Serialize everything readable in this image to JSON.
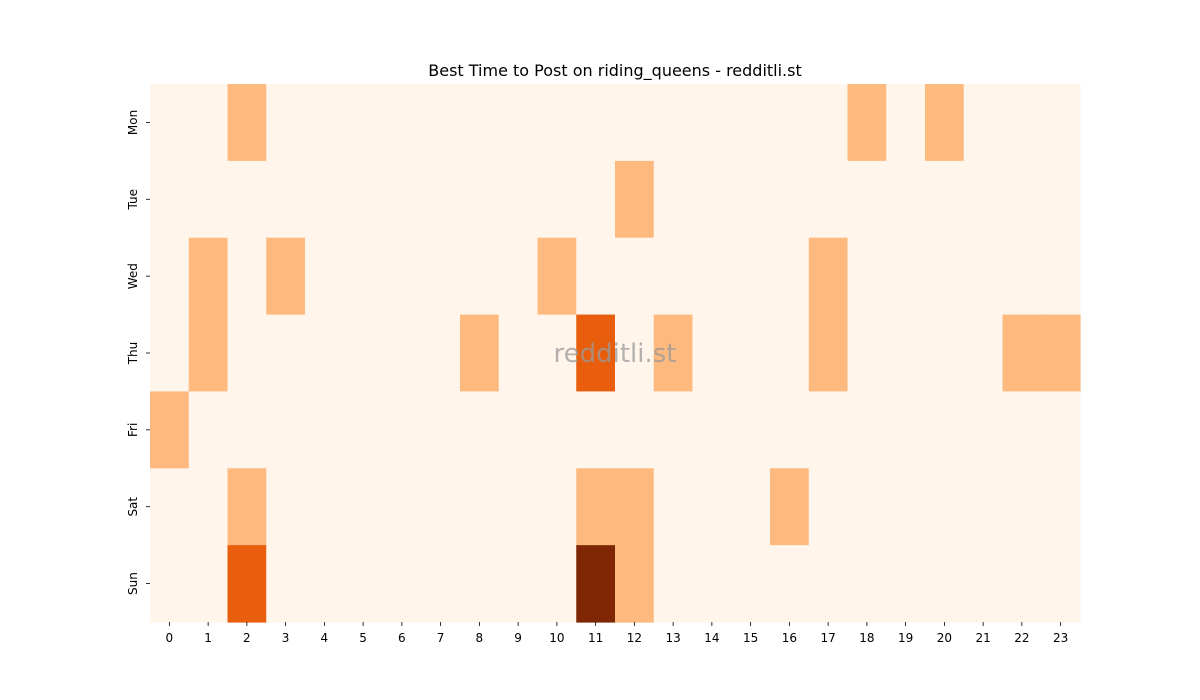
{
  "chart_data": {
    "type": "heatmap",
    "title": "Best Time to Post on riding_queens - redditli.st",
    "watermark": "redditli.st",
    "x_categories": [
      "0",
      "1",
      "2",
      "3",
      "4",
      "5",
      "6",
      "7",
      "8",
      "9",
      "10",
      "11",
      "12",
      "13",
      "14",
      "15",
      "16",
      "17",
      "18",
      "19",
      "20",
      "21",
      "22",
      "23"
    ],
    "y_categories": [
      "Mon",
      "Tue",
      "Wed",
      "Thu",
      "Fri",
      "Sat",
      "Sun"
    ],
    "values": [
      [
        0,
        0,
        1,
        0,
        0,
        0,
        0,
        0,
        0,
        0,
        0,
        0,
        0,
        0,
        0,
        0,
        0,
        0,
        1,
        0,
        1,
        0,
        0,
        0
      ],
      [
        0,
        0,
        0,
        0,
        0,
        0,
        0,
        0,
        0,
        0,
        0,
        0,
        1,
        0,
        0,
        0,
        0,
        0,
        0,
        0,
        0,
        0,
        0,
        0
      ],
      [
        0,
        1,
        0,
        1,
        0,
        0,
        0,
        0,
        0,
        0,
        1,
        0,
        0,
        0,
        0,
        0,
        0,
        1,
        0,
        0,
        0,
        0,
        0,
        0
      ],
      [
        0,
        1,
        0,
        0,
        0,
        0,
        0,
        0,
        1,
        0,
        0,
        2,
        0,
        1,
        0,
        0,
        0,
        1,
        0,
        0,
        0,
        0,
        1,
        1
      ],
      [
        1,
        0,
        0,
        0,
        0,
        0,
        0,
        0,
        0,
        0,
        0,
        0,
        0,
        0,
        0,
        0,
        0,
        0,
        0,
        0,
        0,
        0,
        0,
        0
      ],
      [
        0,
        0,
        1,
        0,
        0,
        0,
        0,
        0,
        0,
        0,
        0,
        1,
        1,
        0,
        0,
        0,
        1,
        0,
        0,
        0,
        0,
        0,
        0,
        0
      ],
      [
        0,
        0,
        2,
        0,
        0,
        0,
        0,
        0,
        0,
        0,
        0,
        3,
        1,
        0,
        0,
        0,
        0,
        0,
        0,
        0,
        0,
        0,
        0,
        0
      ]
    ],
    "color_scale": [
      "#fff5eb",
      "#fdb97e",
      "#e95e0d",
      "#7f2704"
    ],
    "vmin": 0,
    "vmax": 3,
    "colorbar": false,
    "grid": false
  }
}
